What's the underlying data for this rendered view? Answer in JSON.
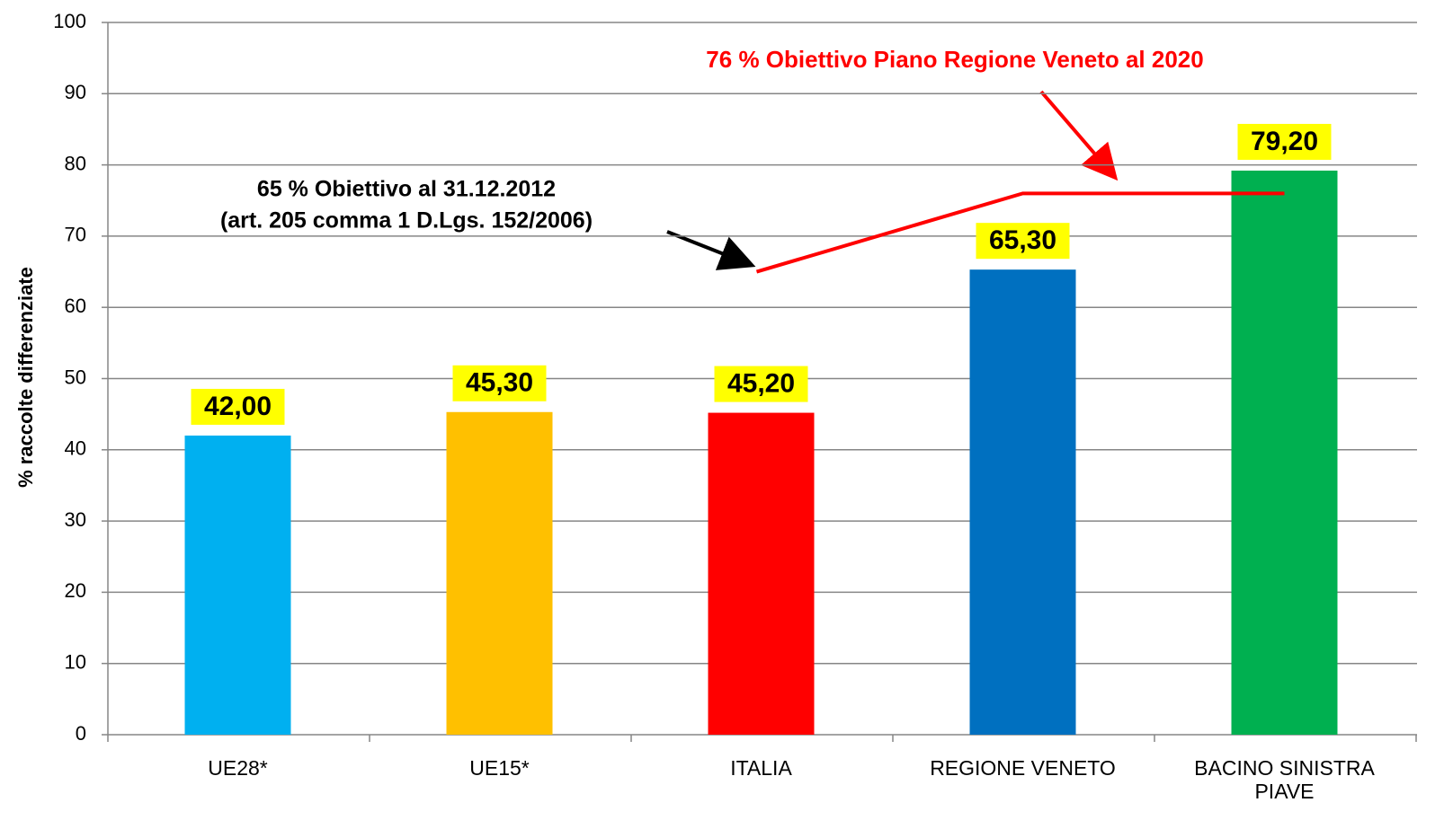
{
  "chart_data": {
    "type": "bar",
    "y_label": "% raccolte differenziate",
    "categories": [
      "UE28*",
      "UE15*",
      "ITALIA",
      "REGIONE VENETO",
      "BACINO SINISTRA PIAVE"
    ],
    "values": [
      42,
      45.3,
      45.2,
      65.3,
      79.2
    ],
    "value_labels": [
      "42,00",
      "45,30",
      "45,20",
      "65,30",
      "79,20"
    ],
    "colors": [
      "#00b0f0",
      "#ffc000",
      "#ff0000",
      "#0070c0",
      "#00b050"
    ],
    "ylim": [
      0,
      100
    ],
    "yticks": [
      0,
      10,
      20,
      30,
      40,
      50,
      60,
      70,
      80,
      90,
      100
    ],
    "grid": true,
    "target_line": {
      "values": [
        null,
        null,
        65,
        76,
        76
      ],
      "color": "#ff0000"
    },
    "annotations": [
      "76 % Obiettivo Piano Regione Veneto al 2020",
      "65 % Obiettivo al 31.12.2012",
      "(art. 205 comma 1 D.Lgs. 152/2006)"
    ]
  }
}
